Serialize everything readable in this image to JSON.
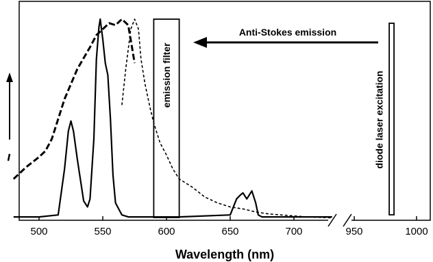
{
  "chart_data": {
    "type": "line",
    "xlabel": "Wavelength (nm)",
    "ylabel": "",
    "x_range_left": [
      480,
      730
    ],
    "x_range_right": [
      925,
      1000
    ],
    "x_ticks_left": [
      500,
      550,
      600,
      650,
      700
    ],
    "x_ticks_right": [
      950,
      1000
    ],
    "axis_break": true,
    "y_range": [
      0,
      1
    ],
    "grid": false,
    "series": [
      {
        "style": "solid",
        "x": [
          480,
          500,
          515,
          520,
          523,
          525,
          527,
          530,
          535,
          538,
          540,
          543,
          545,
          547,
          548,
          550,
          552,
          554,
          556,
          558,
          560,
          565,
          570,
          580,
          590,
          600,
          610,
          650,
          655,
          658,
          660,
          663,
          665,
          667,
          670,
          672,
          675,
          680,
          700,
          730
        ],
        "y": [
          0.01,
          0.01,
          0.02,
          0.25,
          0.44,
          0.49,
          0.44,
          0.3,
          0.09,
          0.06,
          0.1,
          0.4,
          0.8,
          0.96,
          1.0,
          0.9,
          0.78,
          0.72,
          0.5,
          0.22,
          0.08,
          0.02,
          0.01,
          0.01,
          0.01,
          0.01,
          0.01,
          0.02,
          0.1,
          0.12,
          0.13,
          0.1,
          0.12,
          0.14,
          0.08,
          0.02,
          0.01,
          0.01,
          0.01,
          0.01
        ]
      },
      {
        "style": "dashed",
        "x": [
          480,
          490,
          500,
          505,
          510,
          520,
          530,
          540,
          545,
          550,
          555,
          560,
          565,
          570,
          575
        ],
        "y": [
          0.2,
          0.26,
          0.31,
          0.34,
          0.4,
          0.6,
          0.75,
          0.86,
          0.92,
          0.95,
          0.98,
          0.97,
          1.0,
          0.97,
          0.78
        ]
      },
      {
        "style": "dotted",
        "x": [
          565,
          568,
          572,
          575,
          578,
          580,
          583,
          587,
          590,
          595,
          600,
          605,
          610,
          620,
          630,
          640,
          650,
          660,
          670,
          680,
          690,
          700,
          710,
          720,
          730
        ],
        "y": [
          0.57,
          0.75,
          0.95,
          1.0,
          0.95,
          0.8,
          0.68,
          0.56,
          0.48,
          0.38,
          0.32,
          0.25,
          0.2,
          0.16,
          0.11,
          0.08,
          0.06,
          0.05,
          0.035,
          0.025,
          0.02,
          0.015,
          0.01,
          0.008,
          0.005
        ]
      }
    ],
    "emission_filter": {
      "label": "emission filter",
      "x_start": 590,
      "x_end": 610
    },
    "laser": {
      "label": "diode laser excitation",
      "x": 980
    },
    "annotation": {
      "label": "Anti-Stokes emission"
    }
  }
}
